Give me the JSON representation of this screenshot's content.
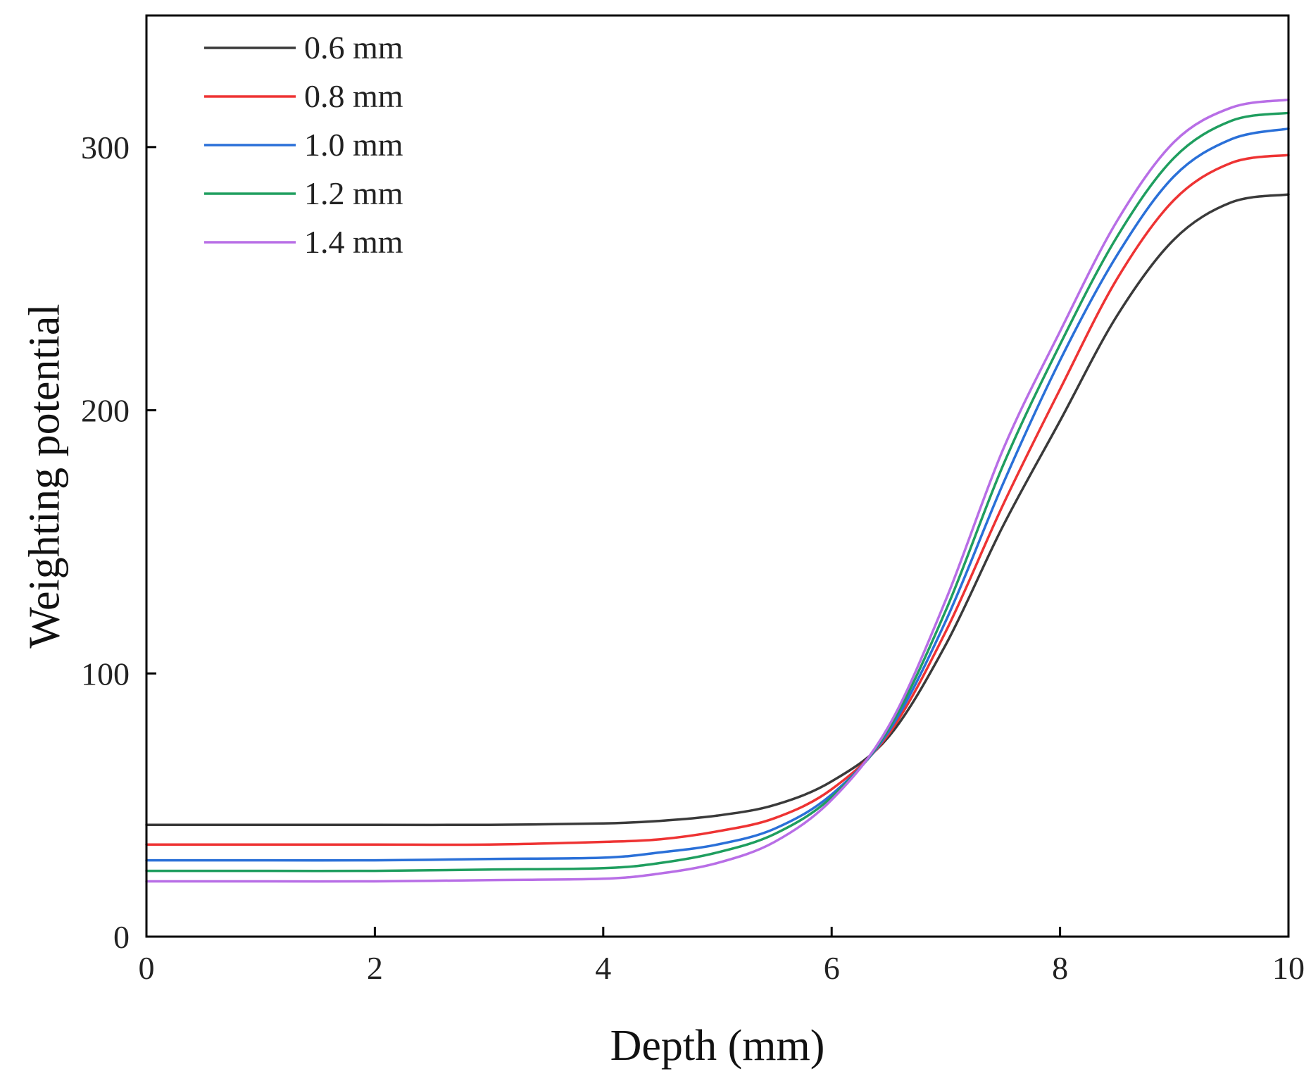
{
  "chart_data": {
    "type": "line",
    "title": "",
    "xlabel": "Depth (mm)",
    "ylabel": "Weighting potential",
    "xlim": [
      0,
      10
    ],
    "ylim": [
      0,
      350
    ],
    "xticks": [
      0,
      2,
      4,
      6,
      8,
      10
    ],
    "xtick_labels": [
      "0",
      "2",
      "4",
      "6",
      "8",
      "10"
    ],
    "yticks": [
      0,
      100,
      200,
      300
    ],
    "ytick_labels": [
      "0",
      "100",
      "200",
      "300"
    ],
    "legend_position": "top-left",
    "series": [
      {
        "name": "0.6 mm",
        "color": "#3a3a3a",
        "x": [
          0,
          1,
          2,
          3,
          4,
          4.5,
          5,
          5.5,
          6,
          6.5,
          7,
          7.5,
          8,
          8.5,
          9,
          9.5,
          10
        ],
        "values": [
          42.5,
          42.5,
          42.5,
          42.5,
          43,
          44,
          46,
          50,
          59,
          76,
          111,
          156,
          196,
          236,
          265,
          279,
          282
        ]
      },
      {
        "name": "0.8 mm",
        "color": "#ee3333",
        "x": [
          0,
          1,
          2,
          3,
          4,
          4.5,
          5,
          5.5,
          6,
          6.5,
          7,
          7.5,
          8,
          8.5,
          9,
          9.5,
          10
        ],
        "values": [
          35,
          35,
          35,
          35,
          36,
          37,
          40,
          45,
          56,
          77,
          116,
          164,
          208,
          250,
          280,
          294,
          297
        ]
      },
      {
        "name": "1.0 mm",
        "color": "#2a70d8",
        "x": [
          0,
          1,
          2,
          3,
          4,
          4.5,
          5,
          5.5,
          6,
          6.5,
          7,
          7.5,
          8,
          8.5,
          9,
          9.5,
          10
        ],
        "values": [
          29,
          29,
          29,
          29.5,
          30,
          32,
          35,
          41,
          54,
          78,
          120,
          172,
          219,
          259,
          289,
          303,
          307
        ]
      },
      {
        "name": "1.2 mm",
        "color": "#1f9e5f",
        "x": [
          0,
          1,
          2,
          3,
          4,
          4.5,
          5,
          5.5,
          6,
          6.5,
          7,
          7.5,
          8,
          8.5,
          9,
          9.5,
          10
        ],
        "values": [
          25,
          25,
          25,
          25.5,
          26,
          28,
          32,
          39,
          53,
          79,
          124,
          179,
          225,
          266,
          296,
          310,
          313
        ]
      },
      {
        "name": "1.4 mm",
        "color": "#b86ee6",
        "x": [
          0,
          1,
          2,
          3,
          4,
          4.5,
          5,
          5.5,
          6,
          6.5,
          7,
          7.5,
          8,
          8.5,
          9,
          9.5,
          10
        ],
        "values": [
          21,
          21,
          21,
          21.5,
          22,
          24,
          28,
          36,
          52,
          80,
          128,
          185,
          230,
          272,
          302,
          315,
          318
        ]
      }
    ]
  }
}
